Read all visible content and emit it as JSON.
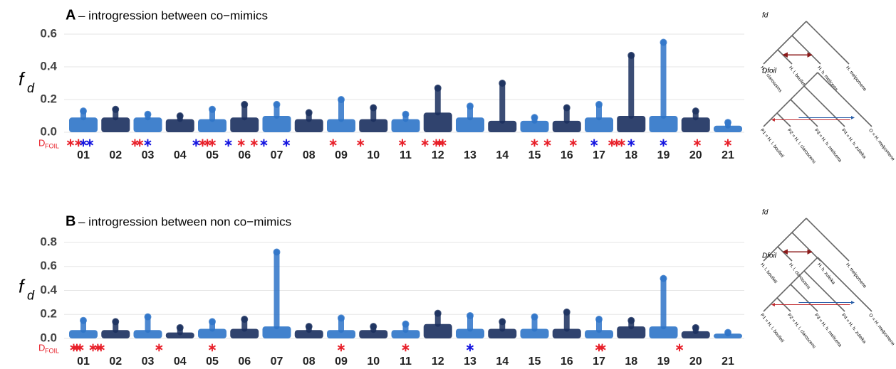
{
  "chart_data": [
    {
      "type": "manhattan",
      "panel": "A",
      "title": "– introgression between co−mimics",
      "ylabel": "f",
      "ylabel_sub": "d",
      "categories": [
        "01",
        "02",
        "03",
        "04",
        "05",
        "06",
        "07",
        "08",
        "09",
        "10",
        "11",
        "12",
        "13",
        "14",
        "15",
        "16",
        "17",
        "18",
        "19",
        "20",
        "21"
      ],
      "values": [
        0.13,
        0.14,
        0.11,
        0.1,
        0.14,
        0.17,
        0.17,
        0.12,
        0.2,
        0.15,
        0.11,
        0.27,
        0.16,
        0.3,
        0.09,
        0.15,
        0.17,
        0.47,
        0.55,
        0.13,
        0.06
      ],
      "typical": [
        0.09,
        0.09,
        0.09,
        0.08,
        0.08,
        0.09,
        0.1,
        0.08,
        0.08,
        0.08,
        0.08,
        0.12,
        0.09,
        0.07,
        0.07,
        0.07,
        0.09,
        0.1,
        0.1,
        0.09,
        0.04
      ],
      "colors": [
        "#2e74c8",
        "#1a2f5e"
      ],
      "ylim": [
        0,
        0.6
      ],
      "yticks": [
        {
          "value": 0,
          "label": "0.0"
        },
        0.2,
        0.4,
        0.6
      ],
      "grid": true,
      "dfoil_label": "D",
      "dfoil_label_sub": "FOIL",
      "dfoil_series": [
        {
          "color": "#e8202a",
          "x": [
            0.6,
            0.85,
            2.6,
            2.75,
            4.7,
            4.85,
            5.0,
            5.9,
            6.3,
            8.75,
            9.6,
            10.9,
            11.6,
            11.95,
            12.05,
            12.15,
            15.0,
            15.4,
            16.2,
            17.4,
            17.55,
            17.7,
            20.05,
            21.0
          ]
        },
        {
          "color": "#1515e0",
          "x": [
            1.0,
            1.2,
            3.0,
            4.5,
            5.5,
            6.6,
            7.3,
            16.85,
            18.0,
            19.0
          ]
        }
      ]
    },
    {
      "type": "manhattan",
      "panel": "B",
      "title": "– introgression between non co−mimics",
      "ylabel": "f",
      "ylabel_sub": "d",
      "categories": [
        "01",
        "02",
        "03",
        "04",
        "05",
        "06",
        "07",
        "08",
        "09",
        "10",
        "11",
        "12",
        "13",
        "14",
        "15",
        "16",
        "17",
        "18",
        "19",
        "20",
        "21"
      ],
      "values": [
        0.15,
        0.14,
        0.18,
        0.09,
        0.14,
        0.16,
        0.72,
        0.1,
        0.17,
        0.1,
        0.12,
        0.21,
        0.19,
        0.14,
        0.18,
        0.22,
        0.16,
        0.15,
        0.5,
        0.09,
        0.05
      ],
      "typical": [
        0.07,
        0.07,
        0.07,
        0.05,
        0.08,
        0.08,
        0.1,
        0.07,
        0.07,
        0.07,
        0.07,
        0.12,
        0.08,
        0.08,
        0.08,
        0.08,
        0.07,
        0.1,
        0.1,
        0.06,
        0.04
      ],
      "colors": [
        "#2e74c8",
        "#1a2f5e"
      ],
      "ylim": [
        0,
        0.8
      ],
      "yticks": [
        {
          "value": 0,
          "label": "0.0"
        },
        0.2,
        0.4,
        0.6,
        0.8
      ],
      "grid": true,
      "dfoil_label": "D",
      "dfoil_label_sub": "FOIL",
      "dfoil_series": [
        {
          "color": "#e8202a",
          "x": [
            0.7,
            0.8,
            0.9,
            1.3,
            1.45,
            1.55,
            3.35,
            5.0,
            9.0,
            11.0,
            17.0,
            17.1,
            19.5
          ]
        },
        {
          "color": "#1515e0",
          "x": [
            13.0
          ]
        }
      ]
    }
  ],
  "trees": [
    {
      "title": "fd",
      "leaves": [
        "H. l. claroscens",
        "H. l. boulleti",
        "H. h. melicerta",
        "H. melpomene"
      ]
    },
    {
      "title": "Dfoil",
      "leaves": [
        "P1 = H. l. boulleti",
        "P2 = H. l. claroscens",
        "P3 = H. h. melicerta",
        "P4 = H. h. zuleika",
        "O = H. melpomene"
      ]
    },
    {
      "title": "fd",
      "leaves": [
        "H. l. boulleti",
        "H. l. claroscens",
        "H. h. zuleika",
        "H. melpomene"
      ]
    },
    {
      "title": "Dfoil",
      "leaves": [
        "P1 = H. l. boulleti",
        "P2 = H. l. claroscens",
        "P3 = H. h. melicerta",
        "P4 = H. h. zuleika",
        "O = H. melpomene"
      ]
    }
  ]
}
